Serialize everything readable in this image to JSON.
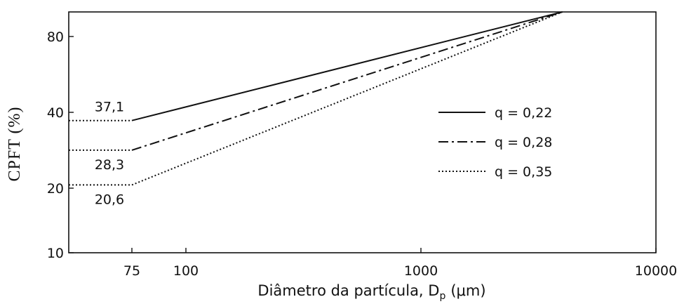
{
  "chart_data": {
    "type": "line",
    "xlabel": {
      "text": "Diâmetro da partícula, D",
      "subscript": "p",
      "suffix": "(μm)"
    },
    "ylabel": "CPFT (%)",
    "xscale": "log",
    "yscale": "log",
    "xlim": [
      50,
      10000
    ],
    "ylim": [
      10,
      100
    ],
    "xticks": [
      75,
      100,
      1000,
      10000
    ],
    "xtick_labels": [
      "75",
      "100",
      "1000",
      "10000"
    ],
    "yticks": [
      10,
      20,
      40,
      80
    ],
    "ytick_labels": [
      "10",
      "20",
      "40",
      "80"
    ],
    "grid": false,
    "line_color": "#111111",
    "legend": {
      "position": "center-right"
    },
    "series": [
      {
        "name": "q = 0,22",
        "line_style": "solid",
        "segments": [
          {
            "line_style": "dotted",
            "x": [
              50,
              75
            ],
            "y": [
              37.1,
              37.1
            ]
          },
          {
            "line_style": "solid",
            "x": [
              75,
              4000
            ],
            "y": [
              37.1,
              100
            ]
          }
        ]
      },
      {
        "name": "q = 0,28",
        "line_style": "dash-dot",
        "segments": [
          {
            "line_style": "dotted",
            "x": [
              50,
              75
            ],
            "y": [
              28.3,
              28.3
            ]
          },
          {
            "line_style": "dash-dot",
            "x": [
              75,
              4000
            ],
            "y": [
              28.3,
              100
            ]
          }
        ]
      },
      {
        "name": "q = 0,35",
        "line_style": "dotted",
        "segments": [
          {
            "line_style": "dotted",
            "x": [
              50,
              75
            ],
            "y": [
              20.6,
              20.6
            ]
          },
          {
            "line_style": "dotted",
            "x": [
              75,
              4000
            ],
            "y": [
              20.6,
              100
            ]
          }
        ]
      }
    ],
    "annotations": [
      {
        "text": "37,1",
        "y": 37.1,
        "placement": "above"
      },
      {
        "text": "28,3",
        "y": 28.3,
        "placement": "below"
      },
      {
        "text": "20,6",
        "y": 20.6,
        "placement": "below"
      }
    ]
  }
}
